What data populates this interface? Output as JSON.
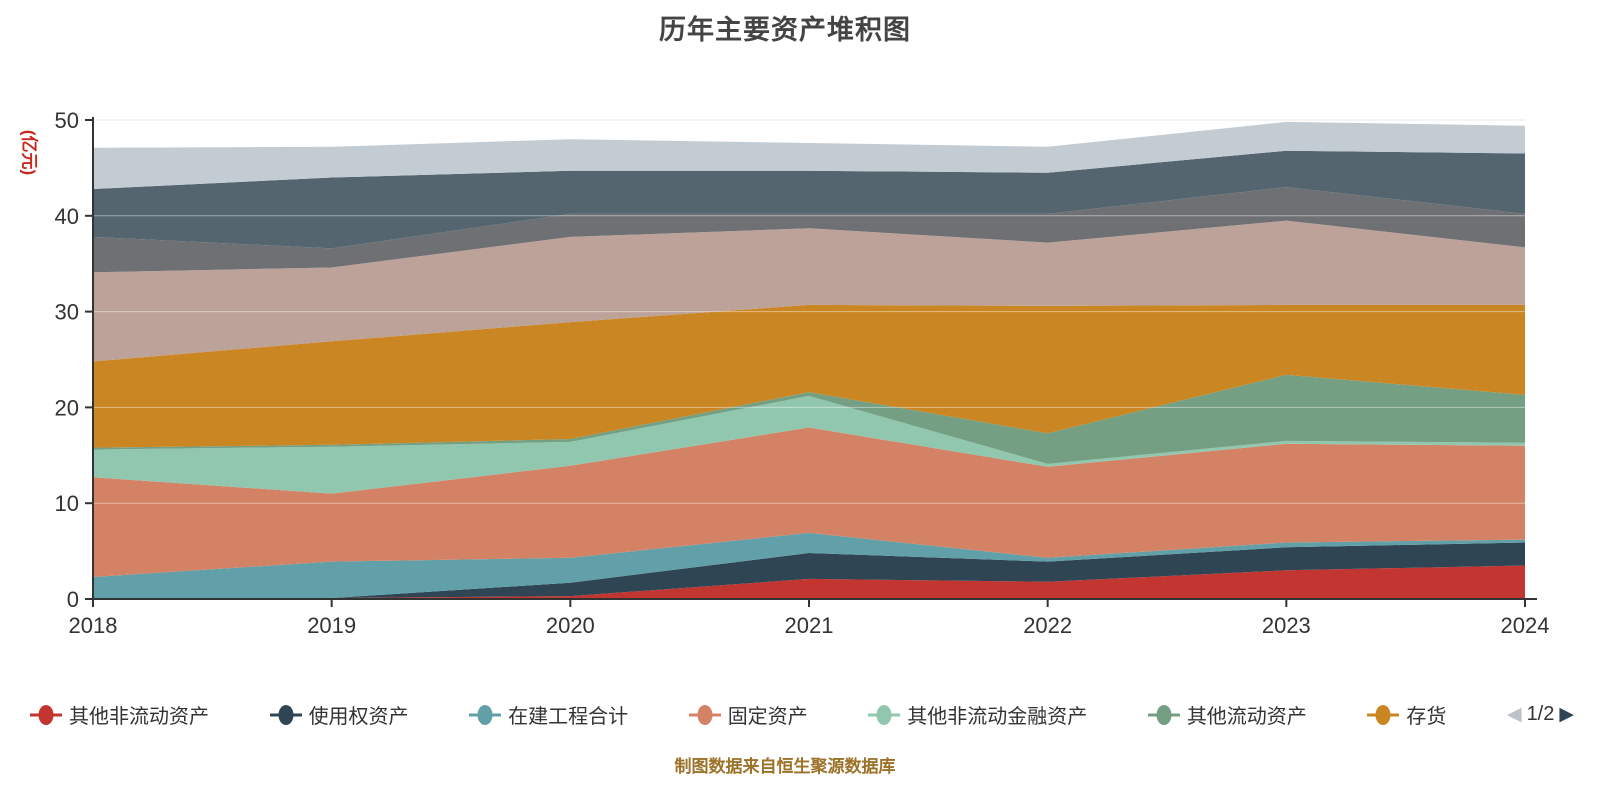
{
  "chart_data": {
    "type": "area",
    "stacked": true,
    "title": "历年主要资产堆积图",
    "unit_label": "(亿元)",
    "unit_label_color": "#c9281c",
    "categories": [
      "2018",
      "2019",
      "2020",
      "2021",
      "2022",
      "2023",
      "2024"
    ],
    "y_axis": {
      "min": 0,
      "max": 50,
      "step": 10,
      "tick_labels": [
        "0",
        "10",
        "20",
        "30",
        "40",
        "50"
      ],
      "grid": true
    },
    "axis_text_color": "#333333",
    "series": [
      {
        "name": "其他非流动资产",
        "color": "#c23531",
        "values": [
          0,
          0.1,
          0.3,
          2.1,
          1.8,
          3.0,
          3.5
        ]
      },
      {
        "name": "使用权资产",
        "color": "#2f4554",
        "values": [
          0,
          0,
          1.4,
          2.7,
          2.1,
          2.4,
          2.4
        ]
      },
      {
        "name": "在建工程合计",
        "color": "#61a0a8",
        "values": [
          2.3,
          3.8,
          2.6,
          2.1,
          0.4,
          0.5,
          0.3
        ]
      },
      {
        "name": "固定资产",
        "color": "#d48265",
        "values": [
          10.4,
          7.1,
          9.6,
          11.0,
          9.5,
          10.3,
          9.8
        ]
      },
      {
        "name": "其他非流动金融资产",
        "color": "#91c7ae",
        "values": [
          2.9,
          4.9,
          2.5,
          3.3,
          0.3,
          0.3,
          0.3
        ]
      },
      {
        "name": "其他流动资产",
        "color": "#749f83",
        "values": [
          0.2,
          0.2,
          0.3,
          0.4,
          3.2,
          6.9,
          5.0
        ]
      },
      {
        "name": "存货",
        "color": "#ca8622",
        "values": [
          9.0,
          10.8,
          12.2,
          9.1,
          13.3,
          7.3,
          9.4
        ]
      },
      {
        "name": "",
        "color": "#bda29a",
        "values": [
          9.3,
          7.7,
          8.9,
          8.0,
          6.6,
          8.8,
          6.0
        ]
      },
      {
        "name": "",
        "color": "#6e7074",
        "values": [
          3.7,
          2.0,
          2.4,
          1.5,
          3.0,
          3.5,
          3.5
        ]
      },
      {
        "name": "",
        "color": "#546570",
        "values": [
          5.0,
          7.4,
          4.5,
          4.5,
          4.3,
          3.8,
          6.3
        ]
      },
      {
        "name": "",
        "color": "#c4ccd3",
        "values": [
          4.3,
          3.2,
          3.3,
          2.9,
          2.7,
          3.0,
          2.9
        ]
      }
    ]
  },
  "legend": {
    "items": [
      {
        "label": "其他非流动资产",
        "color": "#c23531"
      },
      {
        "label": "使用权资产",
        "color": "#2f4554"
      },
      {
        "label": "在建工程合计",
        "color": "#61a0a8"
      },
      {
        "label": "固定资产",
        "color": "#d48265"
      },
      {
        "label": "其他非流动金融资产",
        "color": "#91c7ae"
      },
      {
        "label": "其他流动资产",
        "color": "#749f83"
      },
      {
        "label": "存货",
        "color": "#ca8622"
      }
    ],
    "pager": {
      "label": "1/2",
      "prev_arrow_color": "#bcc0c9",
      "next_arrow_color": "#2f4554"
    }
  },
  "footer": {
    "source": "制图数据来自恒生聚源数据库",
    "source_color": "#9c7228"
  }
}
